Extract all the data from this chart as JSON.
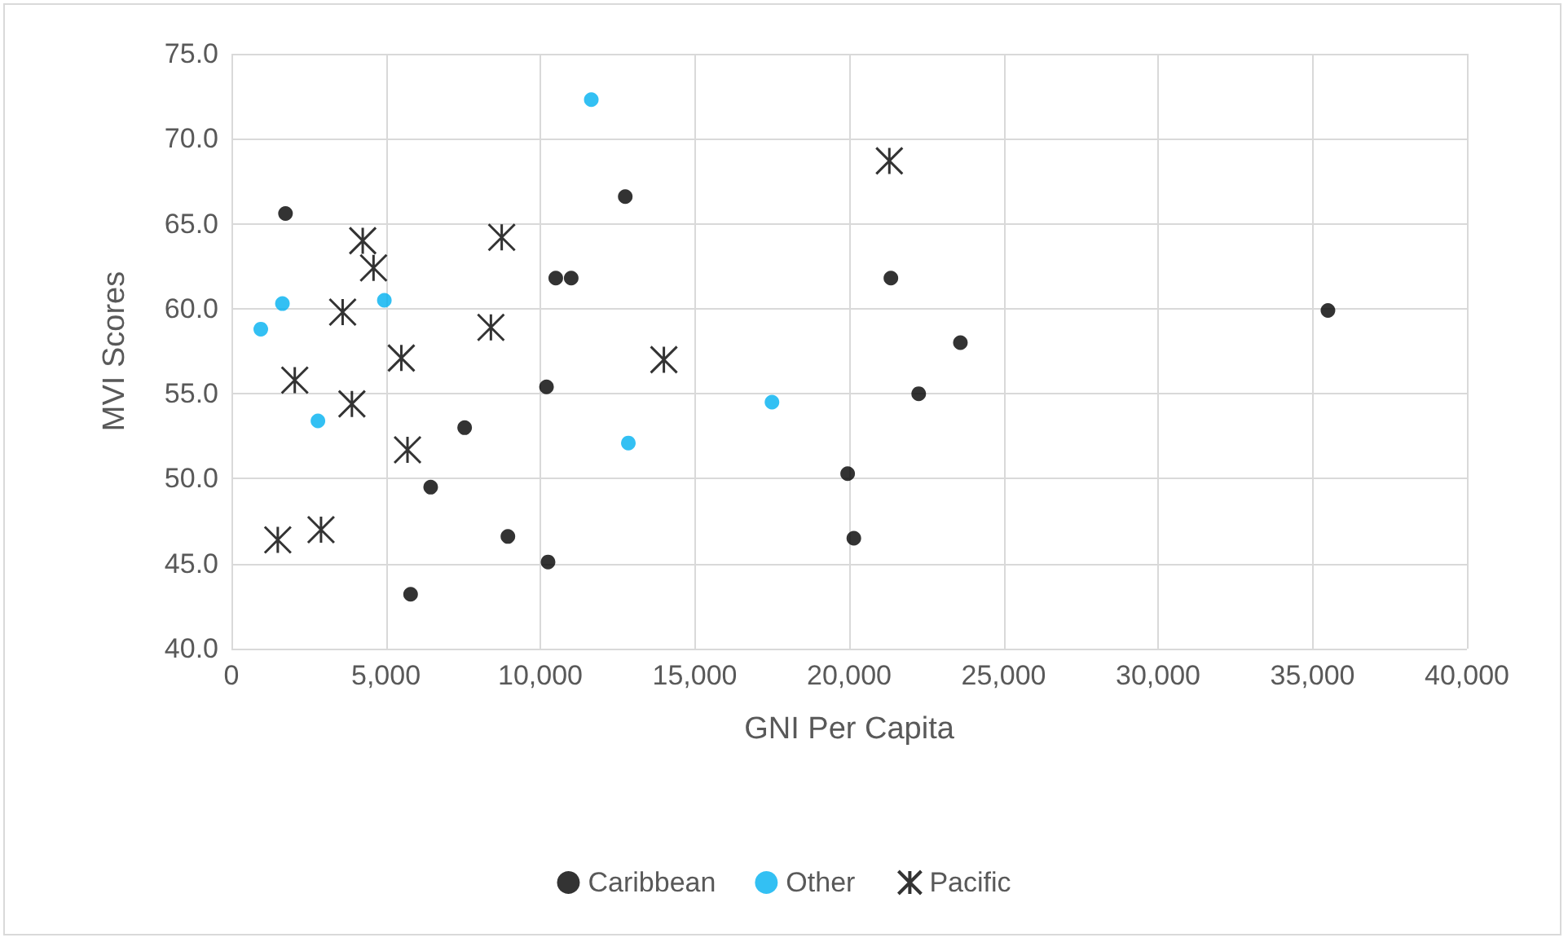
{
  "chart_data": {
    "type": "scatter",
    "xlabel": "GNI Per Capita",
    "ylabel": "MVI Scores",
    "xlim": [
      0,
      40000
    ],
    "ylim": [
      40,
      75
    ],
    "xticks": [
      {
        "value": 0,
        "label": "0"
      },
      {
        "value": 5000,
        "label": "5,000"
      },
      {
        "value": 10000,
        "label": "10,000"
      },
      {
        "value": 15000,
        "label": "15,000"
      },
      {
        "value": 20000,
        "label": "20,000"
      },
      {
        "value": 25000,
        "label": "25,000"
      },
      {
        "value": 30000,
        "label": "30,000"
      },
      {
        "value": 35000,
        "label": "35,000"
      },
      {
        "value": 40000,
        "label": "40,000"
      }
    ],
    "yticks": [
      {
        "value": 40,
        "label": "40.0"
      },
      {
        "value": 45,
        "label": "45.0"
      },
      {
        "value": 50,
        "label": "50.0"
      },
      {
        "value": 55,
        "label": "55.0"
      },
      {
        "value": 60,
        "label": "60.0"
      },
      {
        "value": 65,
        "label": "65.0"
      },
      {
        "value": 70,
        "label": "70.0"
      },
      {
        "value": 75,
        "label": "75.0"
      }
    ],
    "grid": true,
    "legend": "bottom",
    "series": [
      {
        "name": "Caribbean",
        "color": "#000000",
        "marker": "circle",
        "x": [
          1750,
          12750,
          10500,
          11000,
          10200,
          7550,
          6450,
          8950,
          10250,
          5800,
          21350,
          23600,
          22250,
          19950,
          20150,
          35500
        ],
        "values": [
          65.6,
          66.6,
          61.8,
          61.8,
          55.4,
          53.0,
          49.5,
          46.6,
          45.1,
          43.2,
          61.8,
          58.0,
          55.0,
          50.3,
          46.5,
          59.9
        ]
      },
      {
        "name": "Other",
        "color": "#00b0f0",
        "marker": "circle",
        "x": [
          11650,
          1650,
          950,
          4950,
          2800,
          12850,
          17500
        ],
        "values": [
          72.3,
          60.3,
          58.8,
          60.5,
          53.4,
          52.1,
          54.5
        ]
      },
      {
        "name": "Pacific",
        "color": "#000000",
        "marker": "cross",
        "x": [
          4250,
          4600,
          8750,
          3600,
          8400,
          5500,
          14000,
          2050,
          3900,
          5700,
          1500,
          2900,
          21300
        ],
        "values": [
          64.0,
          62.4,
          64.2,
          59.8,
          58.9,
          57.1,
          57.0,
          55.8,
          54.4,
          51.7,
          46.4,
          47.0,
          68.7
        ]
      }
    ]
  }
}
